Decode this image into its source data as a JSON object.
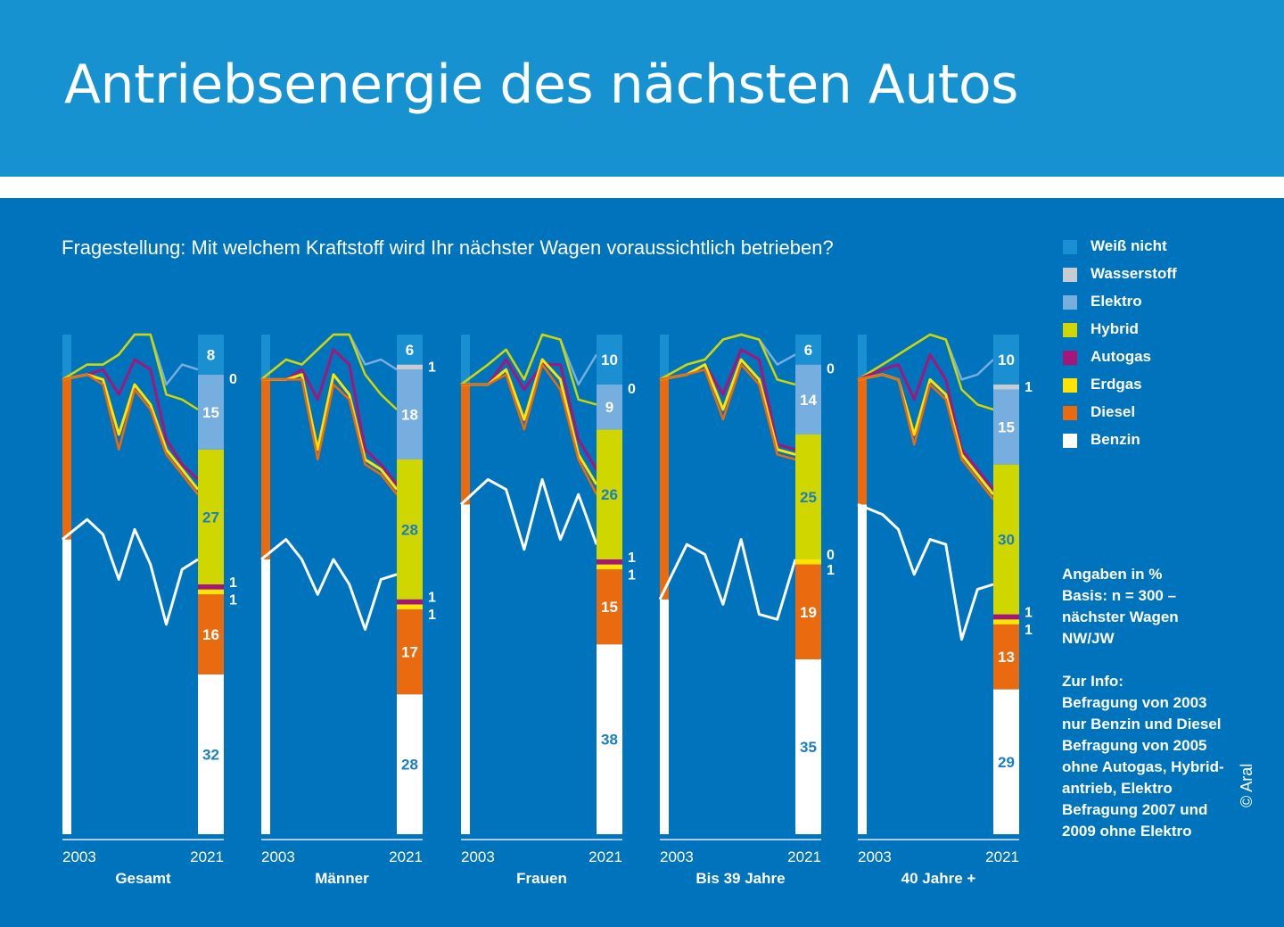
{
  "title": "Antriebsenergie des nächsten Autos",
  "question": "Fragestellung: Mit welchem Kraftstoff wird Ihr nächster Wagen voraussichtlich betrieben?",
  "legend": [
    {
      "label": "Weiß nicht",
      "color": "#1a8fd1"
    },
    {
      "label": "Wasserstoff",
      "color": "#c8ccd2"
    },
    {
      "label": "Elektro",
      "color": "#76aee0"
    },
    {
      "label": "Hybrid",
      "color": "#cfd600"
    },
    {
      "label": "Autogas",
      "color": "#a6157a"
    },
    {
      "label": "Erdgas",
      "color": "#ffe400"
    },
    {
      "label": "Diesel",
      "color": "#ea6a0f"
    },
    {
      "label": "Benzin",
      "color": "#ffffff"
    }
  ],
  "notes": {
    "lines": [
      "Angaben in %",
      "Basis: n = 300 –",
      "nächster Wagen",
      "NW/JW",
      "",
      "Zur Info:",
      "Befragung von 2003",
      "nur Benzin und Diesel",
      "Befragung von 2005",
      "ohne Autogas, Hybrid-",
      "antrieb, Elektro",
      "Befragung 2007 und",
      "2009 ohne Elektro"
    ]
  },
  "copyright": "© Aral",
  "chart_data": {
    "type": "area",
    "ylim": [
      0,
      100
    ],
    "x_start_label": "2003",
    "x_end_label": "2021",
    "series_order": [
      "Benzin",
      "Diesel",
      "Erdgas",
      "Autogas",
      "Hybrid",
      "Elektro",
      "Wasserstoff",
      "Weiß nicht"
    ],
    "panels": [
      {
        "name": "Gesamt",
        "benzin_history": [
          59,
          63,
          60,
          51,
          61,
          54,
          42,
          53,
          55
        ],
        "cumulative_history": {
          "Diesel": [
            91,
            92,
            90,
            77,
            89,
            85,
            76,
            72,
            68
          ],
          "Erdgas": [
            91,
            92,
            91,
            80,
            90,
            86,
            77,
            73,
            69
          ],
          "Autogas": [
            91,
            92,
            93,
            88,
            95,
            93,
            79,
            74,
            71
          ],
          "Hybrid": [
            91,
            94,
            94,
            96,
            100,
            100,
            88,
            87,
            85
          ],
          "Elektro": [
            91,
            94,
            94,
            96,
            100,
            100,
            90,
            94,
            93
          ],
          "Weiß nicht": [
            100,
            100,
            100,
            100,
            100,
            100,
            100,
            100,
            100
          ]
        },
        "bar_2021": {
          "Benzin": 32,
          "Diesel": 16,
          "Erdgas": 1,
          "Autogas": 1,
          "Hybrid": 27,
          "Elektro": 15,
          "Wasserstoff": 0,
          "Weiß nicht": 8
        }
      },
      {
        "name": "Männer",
        "benzin_history": [
          55,
          59,
          55,
          48,
          55,
          50,
          41,
          51,
          52
        ],
        "cumulative_history": {
          "Diesel": [
            91,
            91,
            91,
            75,
            90,
            87,
            74,
            72,
            68
          ],
          "Erdgas": [
            91,
            91,
            92,
            77,
            92,
            88,
            75,
            73,
            69
          ],
          "Autogas": [
            91,
            91,
            93,
            87,
            97,
            94,
            77,
            74,
            70
          ],
          "Hybrid": [
            91,
            95,
            94,
            97,
            100,
            100,
            92,
            88,
            85
          ],
          "Elektro": [
            91,
            95,
            94,
            97,
            100,
            100,
            94,
            95,
            93
          ],
          "Weiß nicht": [
            100,
            100,
            100,
            100,
            100,
            100,
            100,
            100,
            100
          ]
        },
        "bar_2021": {
          "Benzin": 28,
          "Diesel": 17,
          "Erdgas": 1,
          "Autogas": 1,
          "Hybrid": 28,
          "Elektro": 18,
          "Wasserstoff": 1,
          "Weiß nicht": 6
        }
      },
      {
        "name": "Frauen",
        "benzin_history": [
          66,
          71,
          69,
          57,
          71,
          59,
          68,
          58
        ],
        "cumulative_history": {
          "Diesel": [
            90,
            90,
            92,
            81,
            94,
            89,
            75,
            68
          ],
          "Erdgas": [
            90,
            90,
            93,
            83,
            95,
            91,
            76,
            70
          ],
          "Autogas": [
            90,
            90,
            95,
            89,
            94,
            94,
            79,
            73
          ],
          "Hybrid": [
            90,
            94,
            97,
            91,
            100,
            99,
            87,
            86
          ],
          "Elektro": [
            90,
            94,
            97,
            91,
            100,
            99,
            90,
            96
          ],
          "Weiß nicht": [
            100,
            100,
            100,
            100,
            100,
            100,
            100,
            100
          ]
        },
        "bar_2021": {
          "Benzin": 38,
          "Diesel": 15,
          "Erdgas": 1,
          "Autogas": 1,
          "Hybrid": 26,
          "Elektro": 9,
          "Wasserstoff": 0,
          "Weiß nicht": 10
        }
      },
      {
        "name": "Bis 39 Jahre",
        "benzin_history": [
          47,
          58,
          56,
          46,
          59,
          44,
          43,
          55
        ],
        "cumulative_history": {
          "Diesel": [
            91,
            92,
            93,
            83,
            94,
            90,
            76,
            75
          ],
          "Erdgas": [
            91,
            92,
            94,
            85,
            95,
            91,
            77,
            76
          ],
          "Autogas": [
            91,
            92,
            94,
            88,
            97,
            95,
            78,
            77
          ],
          "Hybrid": [
            91,
            94,
            95,
            99,
            100,
            99,
            91,
            90
          ],
          "Elektro": [
            91,
            94,
            95,
            99,
            100,
            99,
            94,
            96
          ],
          "Weiß nicht": [
            100,
            100,
            100,
            100,
            100,
            100,
            100,
            100
          ]
        },
        "bar_2021": {
          "Benzin": 35,
          "Diesel": 19,
          "Erdgas": 1,
          "Autogas": 0,
          "Hybrid": 25,
          "Elektro": 14,
          "Wasserstoff": 0,
          "Weiß nicht": 6
        }
      },
      {
        "name": "40 Jahre +",
        "benzin_history": [
          66,
          64,
          61,
          52,
          59,
          58,
          39,
          49,
          50
        ],
        "cumulative_history": {
          "Diesel": [
            91,
            92,
            91,
            78,
            90,
            87,
            75,
            71,
            67
          ],
          "Erdgas": [
            91,
            92,
            91,
            80,
            91,
            88,
            76,
            72,
            68
          ],
          "Autogas": [
            91,
            93,
            94,
            87,
            96,
            91,
            77,
            73,
            69
          ],
          "Hybrid": [
            91,
            94,
            96,
            98,
            100,
            99,
            89,
            86,
            85
          ],
          "Elektro": [
            91,
            94,
            96,
            98,
            100,
            99,
            91,
            92,
            95
          ],
          "Weiß nicht": [
            100,
            100,
            100,
            100,
            100,
            100,
            100,
            100,
            100
          ]
        },
        "bar_2021": {
          "Benzin": 29,
          "Diesel": 13,
          "Erdgas": 1,
          "Autogas": 1,
          "Hybrid": 30,
          "Elektro": 15,
          "Wasserstoff": 1,
          "Weiß nicht": 10
        }
      }
    ]
  }
}
